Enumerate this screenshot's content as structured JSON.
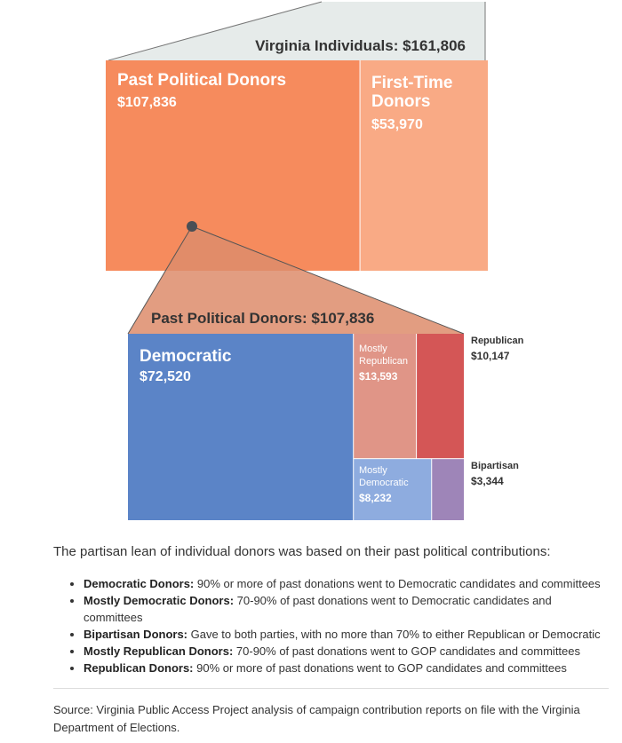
{
  "chart_data": [
    {
      "type": "treemap",
      "title": "Virginia Individuals: $161,806",
      "segments": [
        {
          "name": "Past Political Donors",
          "value": 107836,
          "label": "$107,836",
          "color": "#f68b5d"
        },
        {
          "name": "First-Time Donors",
          "value": 53970,
          "label": "$53,970",
          "color": "#f9aa85"
        }
      ]
    },
    {
      "type": "treemap",
      "title": "Past Political Donors: $107,836",
      "segments": [
        {
          "name": "Democratic",
          "value": 72520,
          "label": "$72,520",
          "color": "#5b84c7"
        },
        {
          "name": "Mostly Republican",
          "value": 13593,
          "label": "$13,593",
          "color": "#e09587"
        },
        {
          "name": "Republican",
          "value": 10147,
          "label": "$10,147",
          "color": "#d45656"
        },
        {
          "name": "Mostly Democratic",
          "value": 8232,
          "label": "$8,232",
          "color": "#8eacdf"
        },
        {
          "name": "Bipartisan",
          "value": 3344,
          "label": "$3,344",
          "color": "#9e85b8"
        }
      ]
    }
  ],
  "labels": {
    "top_title": "Virginia Individuals: $161,806",
    "past_name": "Past Political Donors",
    "past_value": "$107,836",
    "first_line1": "First-Time",
    "first_line2": "Donors",
    "first_value": "$53,970",
    "bottom_title": "Past Political Donors: $107,836",
    "dem_name": "Democratic",
    "dem_value": "$72,520",
    "mrep_line1": "Mostly",
    "mrep_line2": "Republican",
    "mrep_value": "$13,593",
    "rep_name": "Republican",
    "rep_value": "$10,147",
    "mdem_line1": "Mostly",
    "mdem_line2": "Democratic",
    "mdem_value": "$8,232",
    "bip_name": "Bipartisan",
    "bip_value": "$3,344"
  },
  "notes": {
    "intro": "The partisan lean of individual donors was based on their past political contributions:",
    "items": [
      {
        "term": "Democratic Donors:",
        "text": " 90% or more of past donations went to Democratic candidates and committees"
      },
      {
        "term": "Mostly Democratic Donors:",
        "text": " 70-90% of past donations went to Democratic candidates and committees"
      },
      {
        "term": "Bipartisan Donors:",
        "text": " Gave to both parties, with no more than 70% to either Republican or Democratic"
      },
      {
        "term": "Mostly Republican Donors:",
        "text": " 70-90% of past donations went to GOP candidates and committees"
      },
      {
        "term": "Republican Donors:",
        "text": " 90% or more of past donations went to GOP candidates and committees"
      }
    ],
    "source": "Source: Virginia Public Access Project analysis of campaign contribution reports on file with the Virginia Department of Elections."
  }
}
